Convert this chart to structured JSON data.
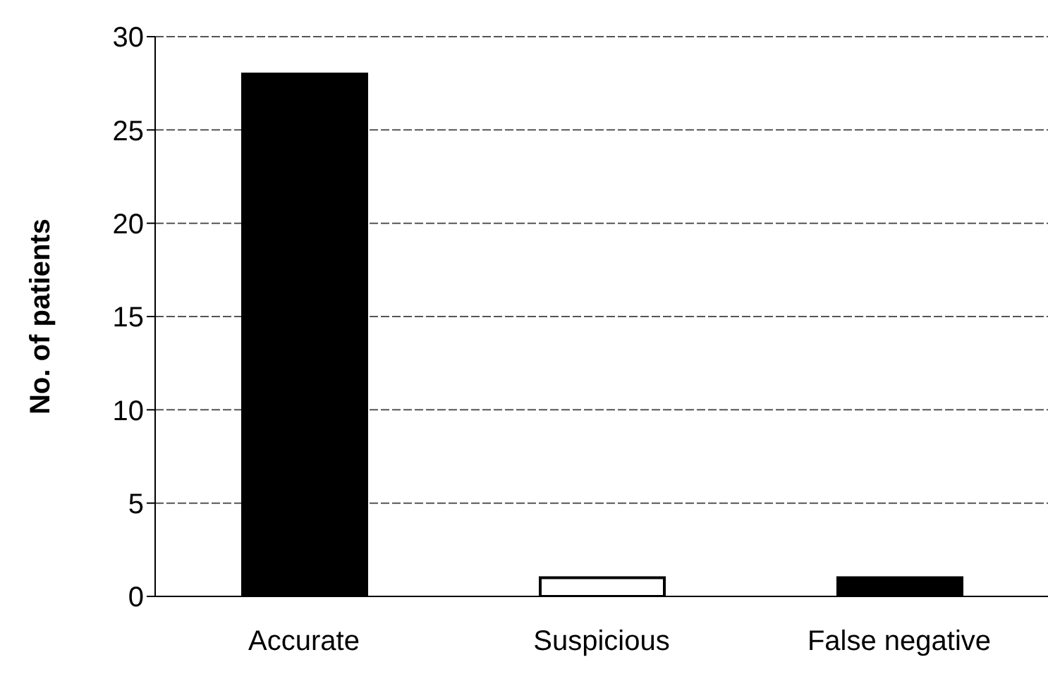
{
  "chart_data": {
    "type": "bar",
    "ylabel": "No. of patients",
    "categories": [
      "Accurate",
      "Suspicious",
      "False negative"
    ],
    "values": [
      28,
      1,
      1
    ],
    "colors": [
      "#000000",
      "#ffffff",
      "#000000"
    ],
    "ylim": [
      0,
      30
    ],
    "yticks": [
      0,
      5,
      10,
      15,
      20,
      25,
      30
    ],
    "grid": "y"
  }
}
